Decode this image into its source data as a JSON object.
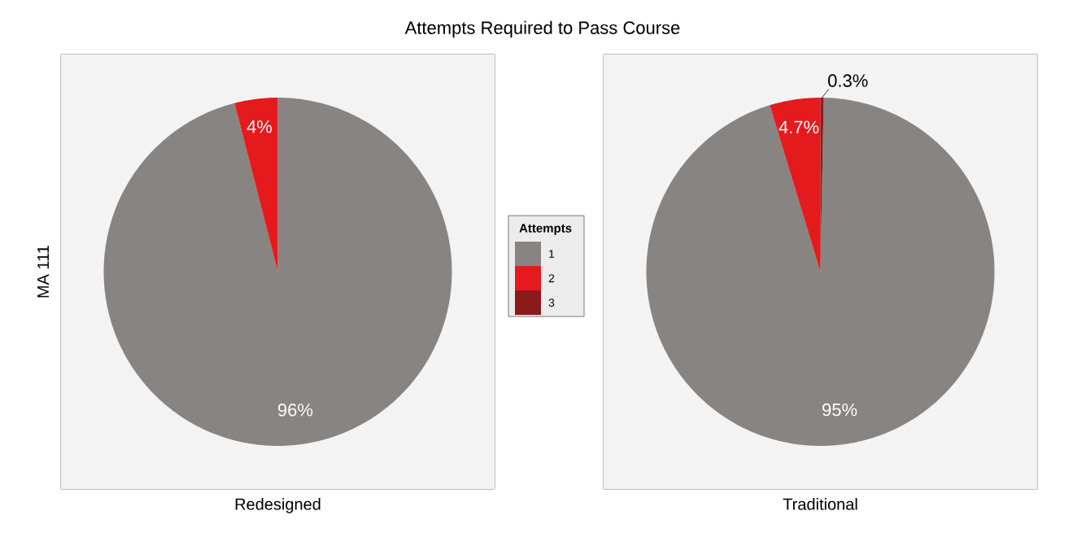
{
  "chart_data": [
    {
      "type": "pie",
      "title": "Attempts Required to Pass Course",
      "xlabel": "Redesigned",
      "ylabel": "MA 111",
      "categories": [
        null,
        null
      ],
      "values": [
        96,
        4
      ],
      "colors": [
        "#878482",
        "#e41a1c"
      ],
      "value_labels": [
        "96%",
        "4%"
      ]
    },
    {
      "type": "pie",
      "xlabel": "Traditional",
      "legend_title": "Attempts",
      "legend": "left",
      "categories": [
        "1",
        "2",
        "3"
      ],
      "values": [
        95,
        4.7,
        0.3
      ],
      "colors": [
        "#878482",
        "#e41a1c",
        "#8b1a1a"
      ],
      "value_labels": [
        "95%",
        "4.7%",
        "0.3%"
      ]
    }
  ]
}
